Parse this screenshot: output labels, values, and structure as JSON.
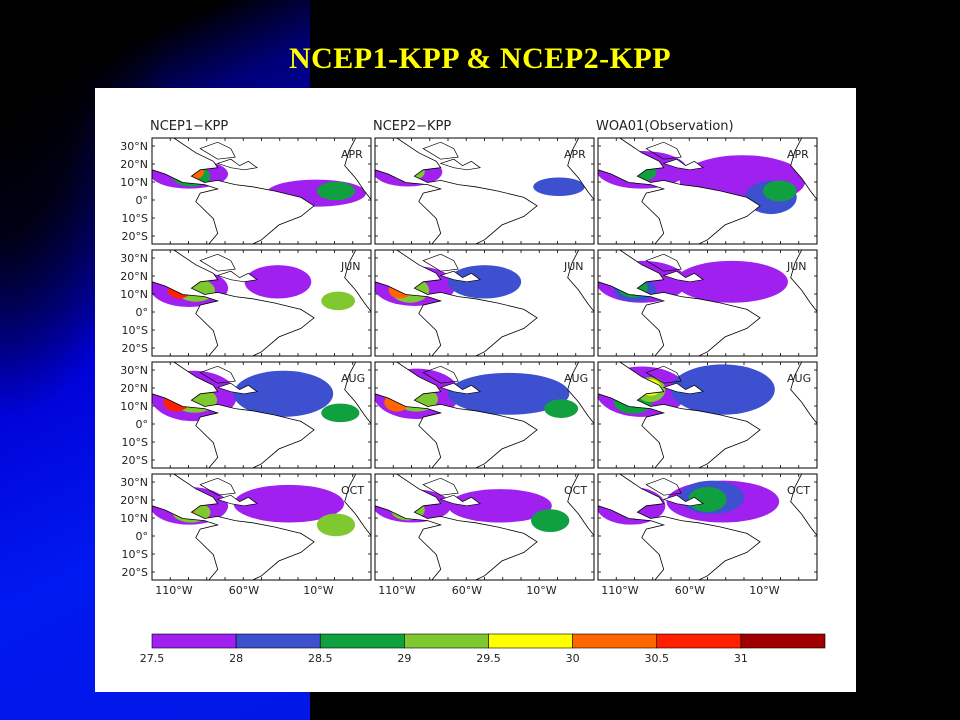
{
  "slide": {
    "title": "NCEP1-KPP & NCEP2-KPP"
  },
  "columns": [
    "NCEP1−KPP",
    "NCEP2−KPP",
    "WOA01(Observation)"
  ],
  "months": [
    "APR",
    "JUN",
    "AUG",
    "OCT"
  ],
  "lat_labels": [
    "30°N",
    "20°N",
    "10°N",
    "0°",
    "10°S",
    "20°S"
  ],
  "lon_labels": [
    "110°W",
    "60°W",
    "10°W"
  ],
  "colorbar": {
    "ticks": [
      "27.5",
      "28",
      "28.5",
      "29",
      "29.5",
      "30",
      "30.5",
      "31"
    ],
    "colors": [
      "#a020f0",
      "#3c50d0",
      "#10a040",
      "#80c830",
      "#ffff00",
      "#ff6600",
      "#ff2000",
      "#a00000"
    ]
  }
}
